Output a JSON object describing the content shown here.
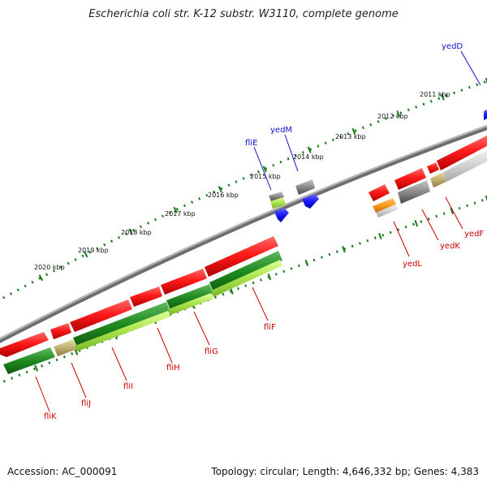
{
  "title": "Escherichia coli str. K-12 substr. W3110, complete genome",
  "footer": {
    "accession": "Accession: AC_000091",
    "summary": "Topology: circular; Length: 4,646,332 bp; Genes: 4,383"
  },
  "scale_labels": [
    "2011 kbp",
    "2012 kbp",
    "2013 kbp",
    "2014 kbp",
    "2015 kbp",
    "2016 kbp",
    "2017 kbp",
    "2018 kbp",
    "2019 kbp",
    "2020 kbp"
  ],
  "gene_labels": {
    "fliK": "fliK",
    "fliJ": "fliJ",
    "fliI": "fliI",
    "fliH": "fliH",
    "fliG": "fliG",
    "fliF": "fliF",
    "fliE": "fliE",
    "yedM": "yedM",
    "yedD": "yedD",
    "yedL": "yedL",
    "yedK": "yedK",
    "yedF": "yedF"
  },
  "colors": {
    "forward_label": "#1010cc",
    "reverse_label": "#cc0000",
    "scale_ticks": "#1a7a1a",
    "backbone": "#8a8a8a"
  }
}
